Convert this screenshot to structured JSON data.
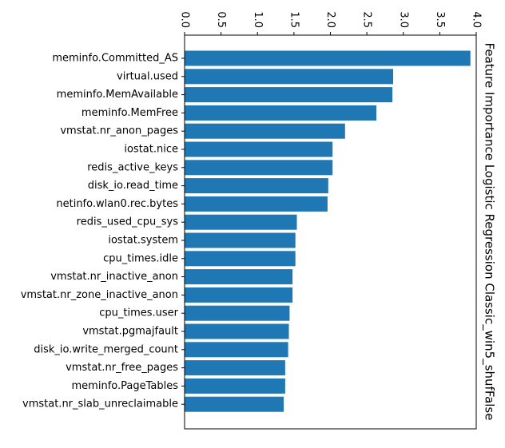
{
  "chart_data": {
    "type": "bar",
    "orientation": "horizontal",
    "title": "Feature Importance Logistic Regression Classic_win5_shufFalse",
    "title_orientation": "vertical",
    "xlabel": "",
    "ylabel": "",
    "xlim": [
      0,
      4.0
    ],
    "x_axis_position": "top",
    "x_tick_labels_rotated": true,
    "x_ticks": [
      "0.0",
      "0.5",
      "1.0",
      "1.5",
      "2.0",
      "2.5",
      "3.0",
      "3.5",
      "4.0"
    ],
    "grid": false,
    "legend": "none",
    "bar_color": "#1f77b4",
    "categories": [
      "meminfo.Committed_AS",
      "virtual.used",
      "meminfo.MemAvailable",
      "meminfo.MemFree",
      "vmstat.nr_anon_pages",
      "iostat.nice",
      "redis_active_keys",
      "disk_io.read_time",
      "netinfo.wlan0.rec.bytes",
      "redis_used_cpu_sys",
      "iostat.system",
      "cpu_times.idle",
      "vmstat.nr_inactive_anon",
      "vmstat.nr_zone_inactive_anon",
      "cpu_times.user",
      "vmstat.pgmajfault",
      "disk_io.write_merged_count",
      "vmstat.nr_free_pages",
      "meminfo.PageTables",
      "vmstat.nr_slab_unreclaimable"
    ],
    "values": [
      3.92,
      2.86,
      2.85,
      2.63,
      2.2,
      2.03,
      2.03,
      1.97,
      1.96,
      1.54,
      1.52,
      1.52,
      1.48,
      1.48,
      1.44,
      1.43,
      1.42,
      1.38,
      1.38,
      1.36
    ]
  }
}
